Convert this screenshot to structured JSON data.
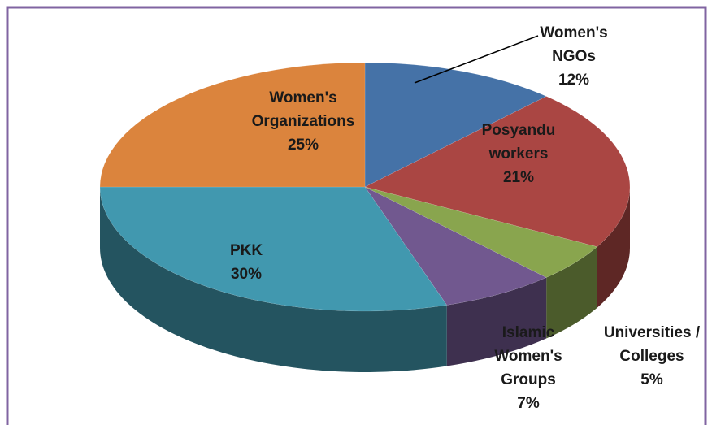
{
  "chart_data": {
    "type": "pie",
    "categories": [
      "Women's NGOs",
      "Posyandu workers",
      "Universities / Colleges",
      "Islamic Women's Groups",
      "PKK",
      "Women's Organizations"
    ],
    "values": [
      12,
      21,
      5,
      7,
      30,
      25
    ],
    "value_labels": [
      "12%",
      "21%",
      "5%",
      "7%",
      "30%",
      "25%"
    ],
    "colors": [
      "#4572a7",
      "#aa4643",
      "#89a54e",
      "#71588f",
      "#4198af",
      "#db843d"
    ]
  }
}
